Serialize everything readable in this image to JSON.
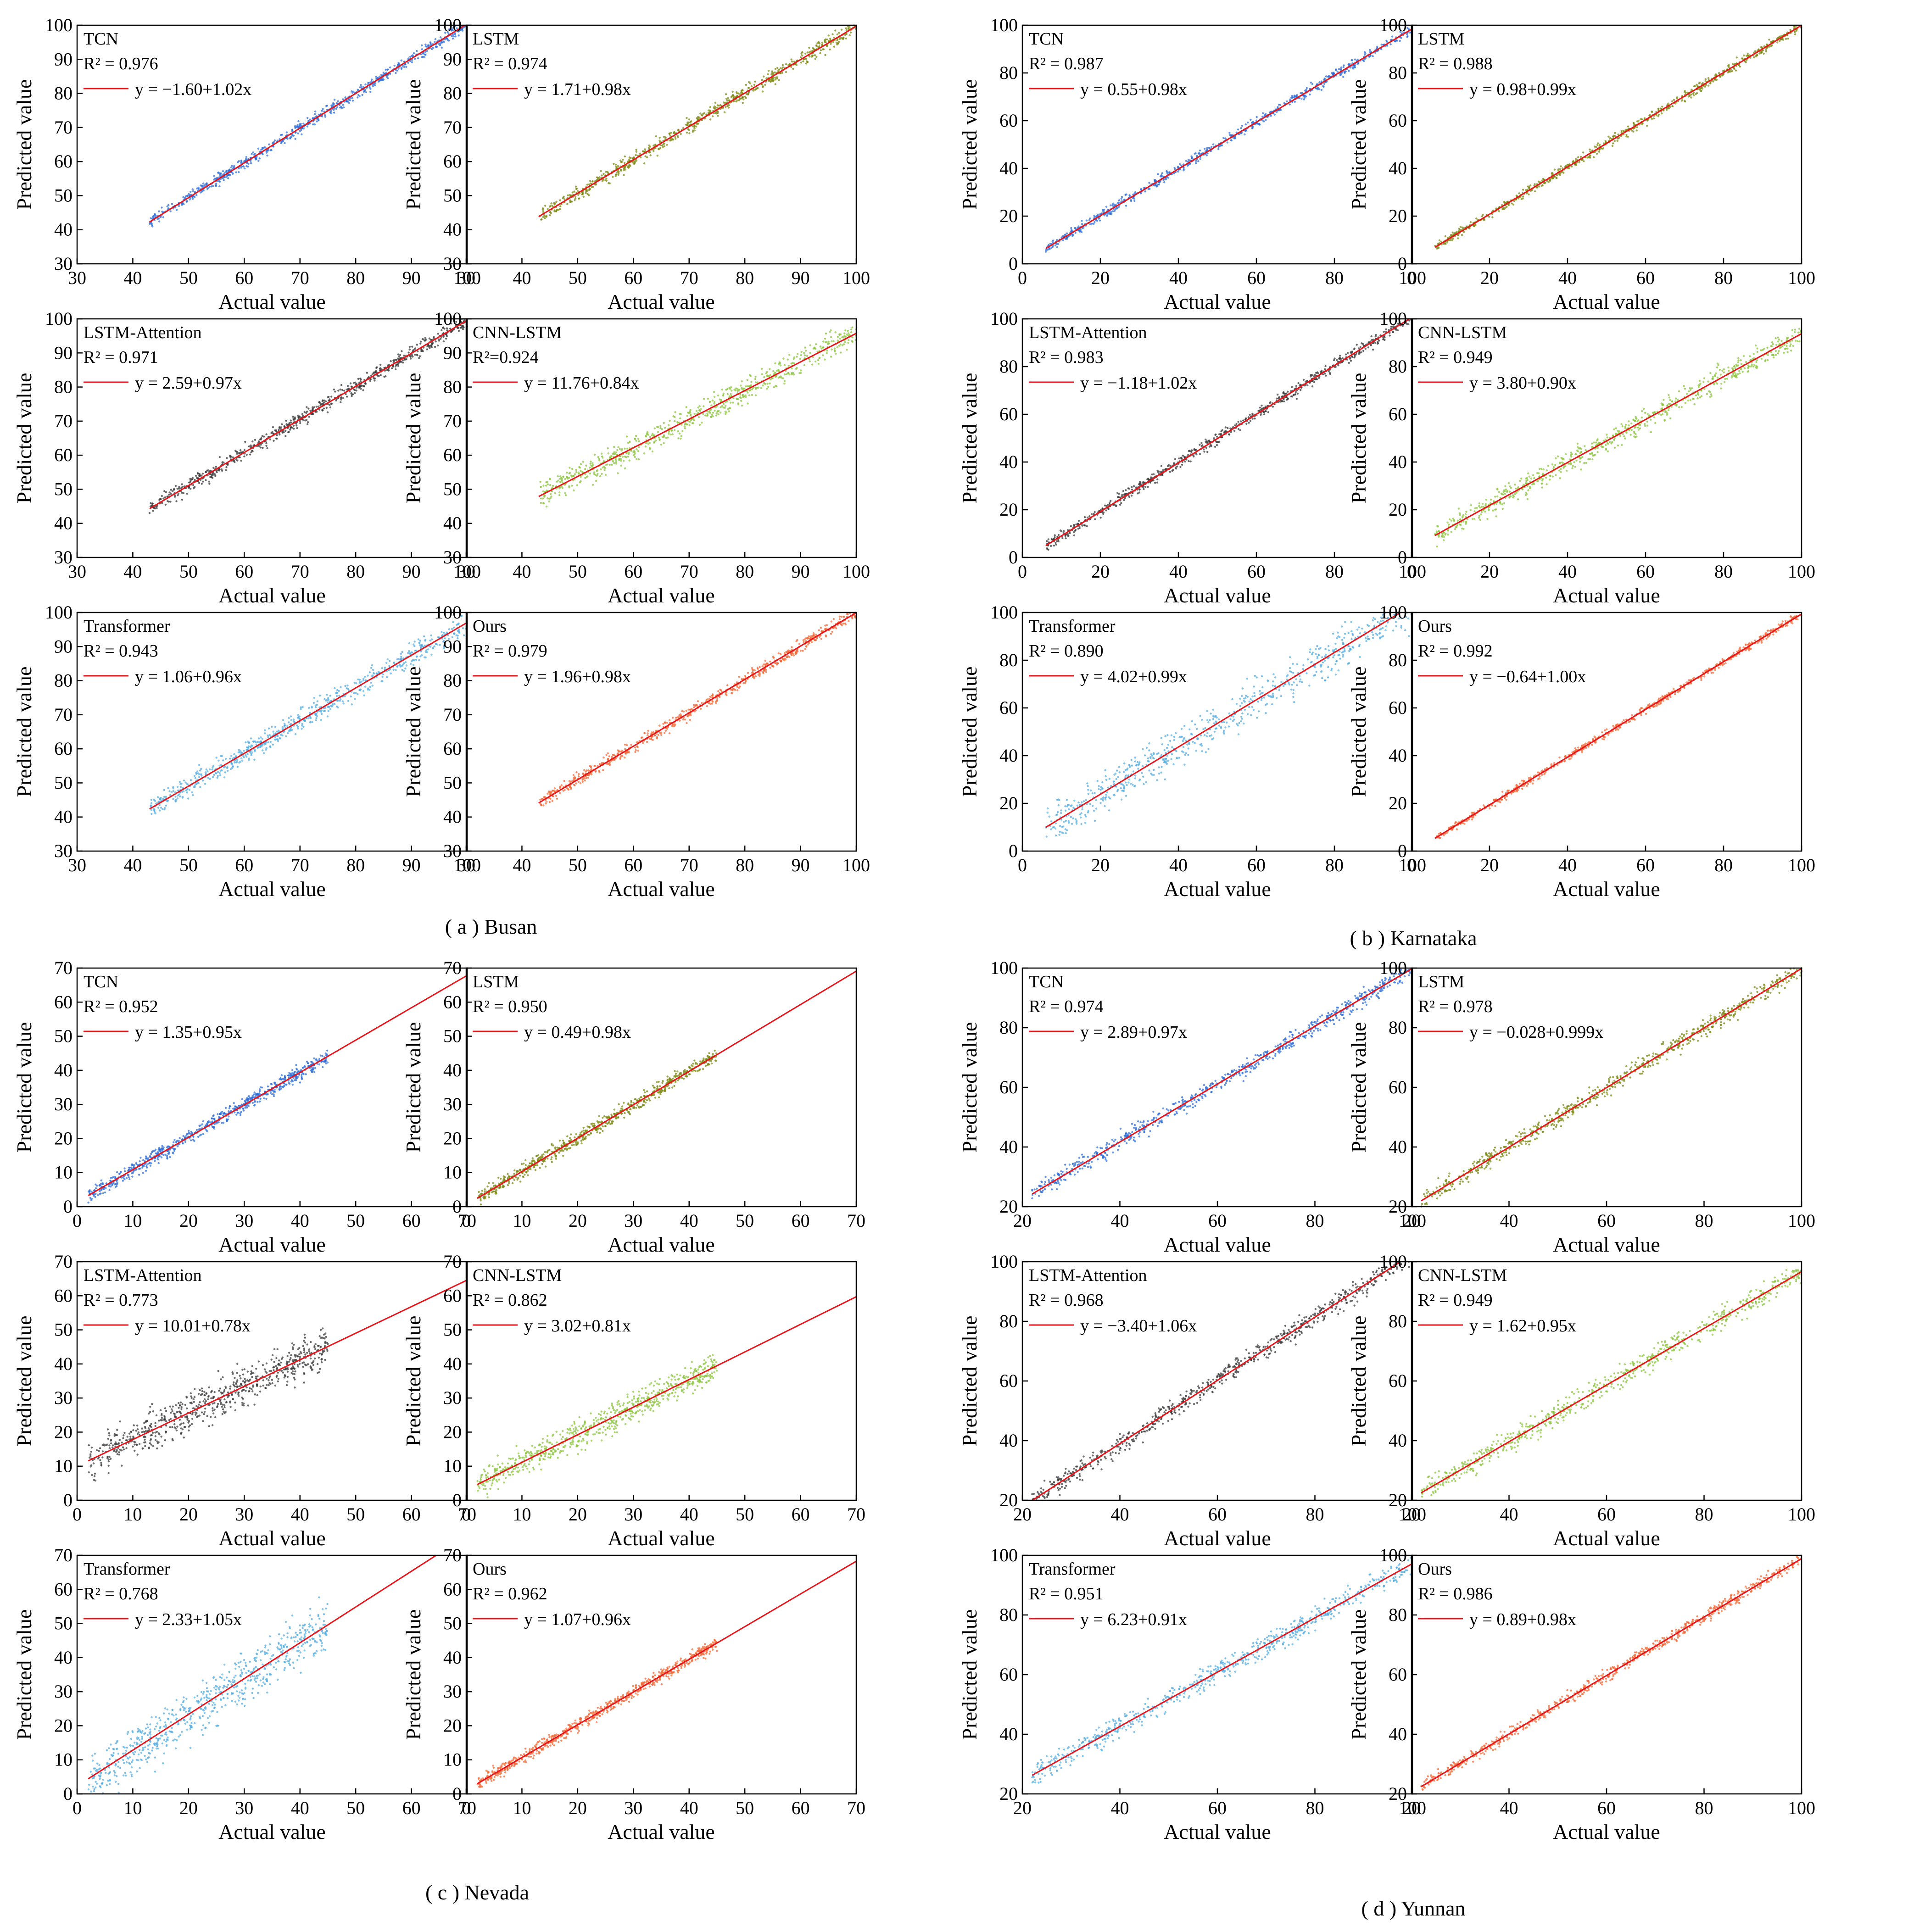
{
  "colors": {
    "background": "#ffffff",
    "axis": "#000000",
    "fit_line": "#e8161c",
    "TCN": "#2f6fd8",
    "LSTM": "#7c8a14",
    "LSTM-Attention": "#3a3a3a",
    "CNN-LSTM": "#8cc63f",
    "Transformer": "#55aee0",
    "Ours": "#f26b3a"
  },
  "axis_labels": {
    "x": "Actual value",
    "y": "Predicted value"
  },
  "chart_data": [
    {
      "type": "scatter",
      "region": "Busan",
      "caption": "( a ) Busan",
      "xlim": [
        30,
        100
      ],
      "ylim": [
        30,
        100
      ],
      "xticks": [
        30,
        40,
        50,
        60,
        70,
        80,
        90,
        100
      ],
      "yticks": [
        30,
        40,
        50,
        60,
        70,
        80,
        90,
        100
      ],
      "xlabel": "Actual value",
      "ylabel": "Predicted value",
      "panels": [
        {
          "model": "TCN",
          "r2": "R² = 0.976",
          "equation": "y = −1.60+1.02x",
          "intercept": -1.6,
          "slope": 1.02,
          "spread": 0.025,
          "lo": 43,
          "hi": 100
        },
        {
          "model": "LSTM",
          "r2": "R² = 0.974",
          "equation": "y = 1.71+0.98x",
          "intercept": 1.71,
          "slope": 0.98,
          "spread": 0.03,
          "lo": 43,
          "hi": 100
        },
        {
          "model": "LSTM-Attention",
          "r2": "R² = 0.971",
          "equation": "y = 2.59+0.97x",
          "intercept": 2.59,
          "slope": 0.97,
          "spread": 0.03,
          "lo": 43,
          "hi": 100
        },
        {
          "model": "CNN-LSTM",
          "r2": "R²=0.924",
          "equation": "y = 11.76+0.84x",
          "intercept": 11.76,
          "slope": 0.84,
          "spread": 0.05,
          "lo": 43,
          "hi": 100
        },
        {
          "model": "Transformer",
          "r2": "R² = 0.943",
          "equation": "y = 1.06+0.96x",
          "intercept": 1.06,
          "slope": 0.96,
          "spread": 0.045,
          "lo": 43,
          "hi": 100
        },
        {
          "model": "Ours",
          "r2": "R² = 0.979",
          "equation": "y = 1.96+0.98x",
          "intercept": 1.96,
          "slope": 0.98,
          "spread": 0.025,
          "lo": 43,
          "hi": 100
        }
      ]
    },
    {
      "type": "scatter",
      "region": "Karnataka",
      "caption": "( b ) Karnataka",
      "xlim": [
        0,
        100
      ],
      "ylim": [
        0,
        100
      ],
      "xticks": [
        0,
        20,
        40,
        60,
        80,
        100
      ],
      "yticks": [
        0,
        20,
        40,
        60,
        80,
        100
      ],
      "xlabel": "Actual value",
      "ylabel": "Predicted value",
      "panels": [
        {
          "model": "TCN",
          "r2": "R² = 0.987",
          "equation": "y = 0.55+0.98x",
          "intercept": 0.55,
          "slope": 0.98,
          "spread": 0.02,
          "lo": 6,
          "hi": 100
        },
        {
          "model": "LSTM",
          "r2": "R² = 0.988",
          "equation": "y = 0.98+0.99x",
          "intercept": 0.98,
          "slope": 0.99,
          "spread": 0.02,
          "lo": 6,
          "hi": 100
        },
        {
          "model": "LSTM-Attention",
          "r2": "R² = 0.983",
          "equation": "y = −1.18+1.02x",
          "intercept": -1.18,
          "slope": 1.02,
          "spread": 0.025,
          "lo": 6,
          "hi": 100
        },
        {
          "model": "CNN-LSTM",
          "r2": "R² = 0.949",
          "equation": "y = 3.80+0.90x",
          "intercept": 3.8,
          "slope": 0.9,
          "spread": 0.045,
          "lo": 6,
          "hi": 100
        },
        {
          "model": "Transformer",
          "r2": "R² = 0.890",
          "equation": "y = 4.02+0.99x",
          "intercept": 4.02,
          "slope": 0.99,
          "spread": 0.08,
          "lo": 6,
          "hi": 100
        },
        {
          "model": "Ours",
          "r2": "R² = 0.992",
          "equation": "y = −0.64+1.00x",
          "intercept": -0.64,
          "slope": 1.0,
          "spread": 0.015,
          "lo": 6,
          "hi": 100
        }
      ]
    },
    {
      "type": "scatter",
      "region": "Nevada",
      "caption": "( c ) Nevada",
      "xlim": [
        0,
        70
      ],
      "ylim": [
        0,
        70
      ],
      "xticks": [
        0,
        10,
        20,
        30,
        40,
        50,
        60,
        70
      ],
      "yticks": [
        0,
        10,
        20,
        30,
        40,
        50,
        60,
        70
      ],
      "xlabel": "Actual value",
      "ylabel": "Predicted value",
      "panels": [
        {
          "model": "TCN",
          "r2": "R² = 0.952",
          "equation": "y = 1.35+0.95x",
          "intercept": 1.35,
          "slope": 0.95,
          "spread": 0.03,
          "lo": 2,
          "hi": 45
        },
        {
          "model": "LSTM",
          "r2": "R² = 0.950",
          "equation": "y = 0.49+0.98x",
          "intercept": 0.49,
          "slope": 0.98,
          "spread": 0.03,
          "lo": 2,
          "hi": 45
        },
        {
          "model": "LSTM-Attention",
          "r2": "R² = 0.773",
          "equation": "y = 10.01+0.78x",
          "intercept": 10.01,
          "slope": 0.78,
          "spread": 0.08,
          "lo": 2,
          "hi": 45
        },
        {
          "model": "CNN-LSTM",
          "r2": "R² = 0.862",
          "equation": "y = 3.02+0.81x",
          "intercept": 3.02,
          "slope": 0.81,
          "spread": 0.06,
          "lo": 2,
          "hi": 45
        },
        {
          "model": "Transformer",
          "r2": "R² = 0.768",
          "equation": "y = 2.33+1.05x",
          "intercept": 2.33,
          "slope": 1.05,
          "spread": 0.1,
          "lo": 2,
          "hi": 45
        },
        {
          "model": "Ours",
          "r2": "R² = 0.962",
          "equation": "y = 1.07+0.96x",
          "intercept": 1.07,
          "slope": 0.96,
          "spread": 0.025,
          "lo": 2,
          "hi": 45
        }
      ]
    },
    {
      "type": "scatter",
      "region": "Yunnan",
      "caption": "( d ) Yunnan",
      "xlim": [
        20,
        100
      ],
      "ylim": [
        20,
        100
      ],
      "xticks": [
        20,
        40,
        60,
        80,
        100
      ],
      "yticks": [
        20,
        40,
        60,
        80,
        100
      ],
      "xlabel": "Actual value",
      "ylabel": "Predicted value",
      "panels": [
        {
          "model": "TCN",
          "r2": "R² = 0.974",
          "equation": "y = 2.89+0.97x",
          "intercept": 2.89,
          "slope": 0.97,
          "spread": 0.035,
          "lo": 22,
          "hi": 100
        },
        {
          "model": "LSTM",
          "r2": "R² = 0.978",
          "equation": "y = −0.028+0.999x",
          "intercept": -0.028,
          "slope": 0.999,
          "spread": 0.035,
          "lo": 22,
          "hi": 100
        },
        {
          "model": "LSTM-Attention",
          "r2": "R² = 0.968",
          "equation": "y = −3.40+1.06x",
          "intercept": -3.4,
          "slope": 1.06,
          "spread": 0.04,
          "lo": 22,
          "hi": 100
        },
        {
          "model": "CNN-LSTM",
          "r2": "R² = 0.949",
          "equation": "y = 1.62+0.95x",
          "intercept": 1.62,
          "slope": 0.95,
          "spread": 0.05,
          "lo": 22,
          "hi": 100
        },
        {
          "model": "Transformer",
          "r2": "R² = 0.951",
          "equation": "y = 6.23+0.91x",
          "intercept": 6.23,
          "slope": 0.91,
          "spread": 0.045,
          "lo": 22,
          "hi": 100
        },
        {
          "model": "Ours",
          "r2": "R² = 0.986",
          "equation": "y = 0.89+0.98x",
          "intercept": 0.89,
          "slope": 0.98,
          "spread": 0.025,
          "lo": 22,
          "hi": 100
        }
      ]
    }
  ]
}
